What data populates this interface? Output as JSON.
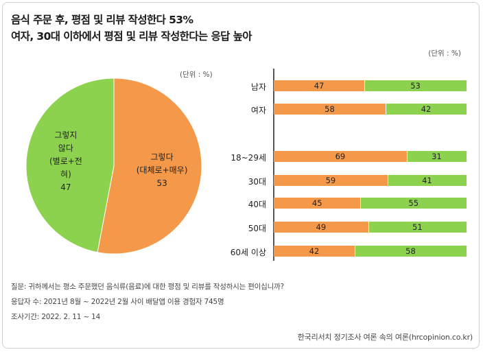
{
  "title_line1": "음식 주문 후, 평점 및 리뷰 작성한다 53%",
  "title_line2": "여자, 30대 이하에서 평점 및 리뷰 작성한다는 응답 높아",
  "unit_label": "(단위 : %)",
  "colors": {
    "yes": "#f4984a",
    "no": "#8dd24e"
  },
  "chart_data": [
    {
      "type": "pie",
      "slices": [
        {
          "label_lines": [
            "그렇다",
            "(대체로+매우)"
          ],
          "value": 53,
          "color": "#f4984a"
        },
        {
          "label_lines": [
            "그렇지",
            "않다",
            "(별로+전",
            "혀)"
          ],
          "value": 47,
          "color": "#8dd24e"
        }
      ]
    },
    {
      "type": "bar",
      "stacked": true,
      "orientation": "horizontal",
      "categories": [
        "남자",
        "여자",
        "18~29세",
        "30대",
        "40대",
        "50대",
        "60세 이상"
      ],
      "series": [
        {
          "values": [
            47,
            58,
            69,
            59,
            45,
            49,
            42
          ],
          "color": "#f4984a"
        },
        {
          "values": [
            53,
            42,
            31,
            41,
            55,
            51,
            58
          ],
          "color": "#8dd24e"
        }
      ],
      "xlim": [
        0,
        100
      ]
    }
  ],
  "notes": [
    "질문:  귀하께서는 평소 주문했던 음식류(음료)에 대한 평점 및 리뷰를 작성하시는 편이십니까?",
    "응답자 수: 2021년 8월 ~ 2022년 2월 사이 배달앱  이용 경험자 745명",
    "조사기간: 2022. 2. 11 ~ 14"
  ],
  "source": "한국리서치 정기조사 여론 속의 여론(hrcopinion.co.kr)"
}
